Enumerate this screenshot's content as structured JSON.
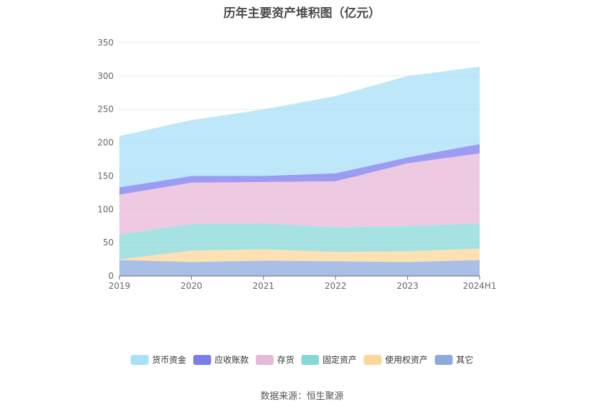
{
  "chart_data": {
    "type": "area",
    "stacked": true,
    "title": "历年主要资产堆积图（亿元）",
    "categories": [
      "2019",
      "2020",
      "2021",
      "2022",
      "2023",
      "2024H1"
    ],
    "ylim": [
      0,
      350
    ],
    "yticks": [
      0,
      50,
      100,
      150,
      200,
      250,
      300,
      350
    ],
    "grid": true,
    "legend_position": "bottom",
    "series": [
      {
        "name": "其它",
        "color": "#8eaadc",
        "values": [
          24,
          21,
          23,
          22,
          21,
          24
        ]
      },
      {
        "name": "使用权资产",
        "color": "#fcd79a",
        "values": [
          1,
          17,
          17,
          14,
          16,
          17
        ]
      },
      {
        "name": "固定资产",
        "color": "#88d8d8",
        "values": [
          37,
          40,
          39,
          37,
          38,
          38
        ]
      },
      {
        "name": "存货",
        "color": "#e8b8d8",
        "values": [
          60,
          62,
          62,
          69,
          94,
          105
        ]
      },
      {
        "name": "应收账款",
        "color": "#7b7cee",
        "values": [
          11,
          10,
          9,
          12,
          9,
          14
        ]
      },
      {
        "name": "货币资金",
        "color": "#a8e0f8",
        "values": [
          77,
          84,
          100,
          116,
          122,
          116
        ]
      }
    ],
    "legend_order": [
      "货币资金",
      "应收账款",
      "存货",
      "固定资产",
      "使用权资产",
      "其它"
    ]
  },
  "source_text": "数据来源：恒生聚源"
}
